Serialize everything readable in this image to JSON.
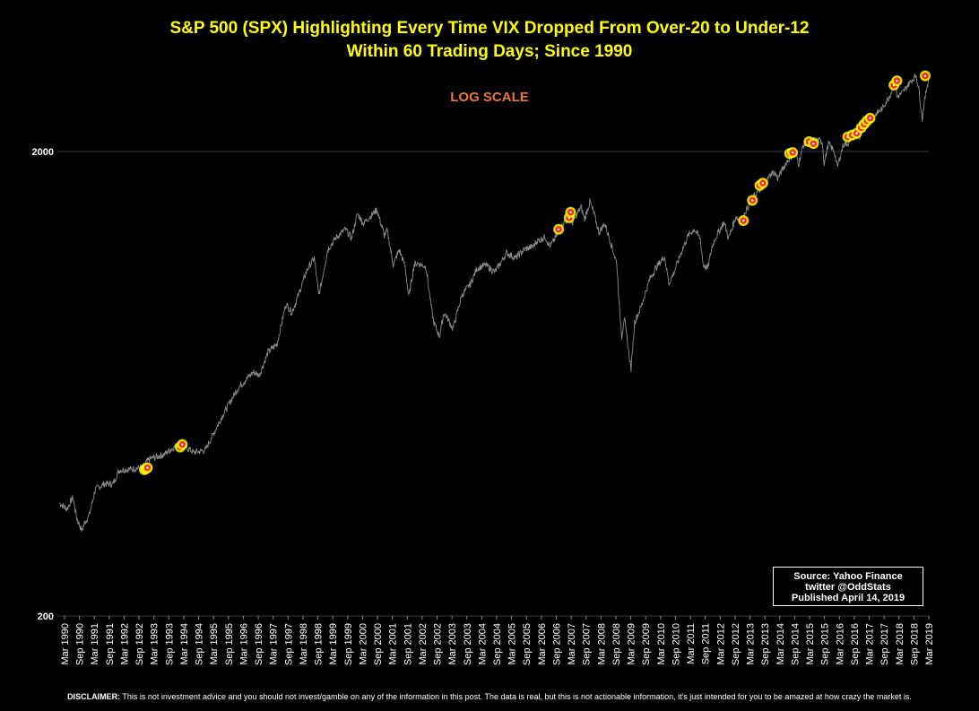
{
  "chart_data": {
    "type": "line",
    "title": "S&P 500 (SPX) Highlighting Every Time VIX Dropped From Over-20 to Under-12",
    "title_line2": "Within 60 Trading Days; Since 1990",
    "subtitle": "LOG SCALE",
    "y_scale": "log",
    "ylim": [
      200,
      3100
    ],
    "y_ticks": [
      {
        "value": 200,
        "label": "200"
      },
      {
        "value": 2000,
        "label": "2000"
      }
    ],
    "x_range": [
      1990.17,
      2019.17
    ],
    "x_tick_labels": [
      "Mar 1990",
      "Sep 1990",
      "Mar 1991",
      "Sep 1991",
      "Mar 1992",
      "Sep 1992",
      "Mar 1993",
      "Sep 1993",
      "Mar 1994",
      "Sep 1994",
      "Mar 1995",
      "Sep 1995",
      "Mar 1996",
      "Sep 1996",
      "Mar 1997",
      "Sep 1997",
      "Mar 1998",
      "Sep 1998",
      "Mar 1999",
      "Sep 1999",
      "Mar 2000",
      "Sep 2000",
      "Mar 2001",
      "Sep 2001",
      "Mar 2002",
      "Sep 2002",
      "Mar 2003",
      "Sep 2003",
      "Mar 2004",
      "Sep 2004",
      "Mar 2005",
      "Sep 2005",
      "Mar 2006",
      "Sep 2006",
      "Mar 2007",
      "Sep 2007",
      "Mar 2008",
      "Sep 2008",
      "Mar 2009",
      "Sep 2009",
      "Mar 2010",
      "Sep 2010",
      "Mar 2011",
      "Sep 2011",
      "Mar 2012",
      "Sep 2012",
      "Mar 2013",
      "Sep 2013",
      "Mar 2014",
      "Sep 2014",
      "Mar 2015",
      "Sep 2015",
      "Mar 2016",
      "Sep 2016",
      "Mar 2017",
      "Sep 2017",
      "Mar 2018",
      "Sep 2018",
      "Mar 2019"
    ],
    "grid": "horizontal at labeled ticks",
    "series": [
      {
        "color": "#8c8c8c",
        "points": [
          [
            1990.0,
            350
          ],
          [
            1990.25,
            340
          ],
          [
            1990.45,
            360
          ],
          [
            1990.58,
            325
          ],
          [
            1990.75,
            305
          ],
          [
            1990.85,
            318
          ],
          [
            1991.0,
            330
          ],
          [
            1991.2,
            375
          ],
          [
            1991.5,
            385
          ],
          [
            1991.8,
            385
          ],
          [
            1992.0,
            412
          ],
          [
            1992.5,
            415
          ],
          [
            1992.8,
            418
          ],
          [
            1993.0,
            435
          ],
          [
            1993.5,
            445
          ],
          [
            1993.9,
            465
          ],
          [
            1994.1,
            470
          ],
          [
            1994.5,
            450
          ],
          [
            1994.9,
            455
          ],
          [
            1995.0,
            470
          ],
          [
            1995.5,
            545
          ],
          [
            1996.0,
            620
          ],
          [
            1996.5,
            670
          ],
          [
            1996.7,
            660
          ],
          [
            1997.0,
            740
          ],
          [
            1997.3,
            770
          ],
          [
            1997.6,
            940
          ],
          [
            1997.8,
            900
          ],
          [
            1998.0,
            975
          ],
          [
            1998.3,
            1110
          ],
          [
            1998.55,
            1180
          ],
          [
            1998.7,
            980
          ],
          [
            1998.8,
            1050
          ],
          [
            1999.0,
            1230
          ],
          [
            1999.3,
            1310
          ],
          [
            1999.6,
            1360
          ],
          [
            1999.8,
            1300
          ],
          [
            2000.0,
            1470
          ],
          [
            2000.2,
            1400
          ],
          [
            2000.65,
            1500
          ],
          [
            2000.9,
            1320
          ],
          [
            2001.0,
            1350
          ],
          [
            2001.2,
            1140
          ],
          [
            2001.4,
            1230
          ],
          [
            2001.6,
            1130
          ],
          [
            2001.72,
            970
          ],
          [
            2001.9,
            1140
          ],
          [
            2002.0,
            1150
          ],
          [
            2002.3,
            1130
          ],
          [
            2002.45,
            950
          ],
          [
            2002.55,
            860
          ],
          [
            2002.75,
            800
          ],
          [
            2002.9,
            900
          ],
          [
            2003.0,
            880
          ],
          [
            2003.2,
            830
          ],
          [
            2003.5,
            980
          ],
          [
            2003.8,
            1040
          ],
          [
            2004.0,
            1120
          ],
          [
            2004.3,
            1140
          ],
          [
            2004.6,
            1100
          ],
          [
            2004.8,
            1150
          ],
          [
            2005.0,
            1210
          ],
          [
            2005.3,
            1180
          ],
          [
            2005.6,
            1230
          ],
          [
            2005.9,
            1250
          ],
          [
            2006.0,
            1280
          ],
          [
            2006.3,
            1310
          ],
          [
            2006.45,
            1250
          ],
          [
            2006.6,
            1290
          ],
          [
            2006.9,
            1400
          ],
          [
            2007.1,
            1440
          ],
          [
            2007.2,
            1400
          ],
          [
            2007.5,
            1520
          ],
          [
            2007.62,
            1430
          ],
          [
            2007.8,
            1560
          ],
          [
            2007.95,
            1460
          ],
          [
            2008.1,
            1340
          ],
          [
            2008.3,
            1400
          ],
          [
            2008.5,
            1270
          ],
          [
            2008.7,
            1150
          ],
          [
            2008.8,
            900
          ],
          [
            2008.87,
            800
          ],
          [
            2008.95,
            880
          ],
          [
            2009.1,
            740
          ],
          [
            2009.18,
            680
          ],
          [
            2009.3,
            860
          ],
          [
            2009.5,
            920
          ],
          [
            2009.8,
            1060
          ],
          [
            2010.0,
            1120
          ],
          [
            2010.3,
            1190
          ],
          [
            2010.45,
            1040
          ],
          [
            2010.6,
            1090
          ],
          [
            2010.9,
            1230
          ],
          [
            2011.1,
            1320
          ],
          [
            2011.3,
            1360
          ],
          [
            2011.5,
            1300
          ],
          [
            2011.6,
            1140
          ],
          [
            2011.75,
            1120
          ],
          [
            2011.9,
            1250
          ],
          [
            2012.0,
            1300
          ],
          [
            2012.3,
            1410
          ],
          [
            2012.45,
            1300
          ],
          [
            2012.7,
            1450
          ],
          [
            2012.9,
            1400
          ],
          [
            2013.0,
            1480
          ],
          [
            2013.3,
            1600
          ],
          [
            2013.6,
            1680
          ],
          [
            2013.9,
            1800
          ],
          [
            2014.0,
            1800
          ],
          [
            2014.1,
            1750
          ],
          [
            2014.4,
            1900
          ],
          [
            2014.7,
            2000
          ],
          [
            2014.8,
            1880
          ],
          [
            2014.95,
            2060
          ],
          [
            2015.2,
            2110
          ],
          [
            2015.4,
            2120
          ],
          [
            2015.6,
            2100
          ],
          [
            2015.66,
            1880
          ],
          [
            2015.8,
            2080
          ],
          [
            2016.0,
            2000
          ],
          [
            2016.1,
            1850
          ],
          [
            2016.3,
            2070
          ],
          [
            2016.5,
            2090
          ],
          [
            2016.6,
            2180
          ],
          [
            2016.85,
            2130
          ],
          [
            2017.0,
            2270
          ],
          [
            2017.3,
            2380
          ],
          [
            2017.6,
            2470
          ],
          [
            2017.9,
            2670
          ],
          [
            2018.05,
            2870
          ],
          [
            2018.1,
            2620
          ],
          [
            2018.3,
            2680
          ],
          [
            2018.5,
            2800
          ],
          [
            2018.75,
            2920
          ],
          [
            2018.85,
            2680
          ],
          [
            2018.95,
            2350
          ],
          [
            2019.0,
            2500
          ],
          [
            2019.1,
            2750
          ],
          [
            2019.17,
            2880
          ]
        ]
      }
    ],
    "highlight_points": [
      [
        1992.85,
        413
      ],
      [
        1992.9,
        415
      ],
      [
        1992.95,
        417
      ],
      [
        1994.05,
        462
      ],
      [
        1994.12,
        468
      ],
      [
        2006.75,
        1360
      ],
      [
        2007.1,
        1440
      ],
      [
        2007.15,
        1480
      ],
      [
        2012.95,
        1420
      ],
      [
        2013.25,
        1570
      ],
      [
        2013.5,
        1690
      ],
      [
        2013.6,
        1710
      ],
      [
        2014.5,
        1980
      ],
      [
        2014.6,
        1990
      ],
      [
        2015.15,
        2100
      ],
      [
        2015.3,
        2080
      ],
      [
        2016.45,
        2150
      ],
      [
        2016.6,
        2170
      ],
      [
        2016.75,
        2190
      ],
      [
        2016.9,
        2250
      ],
      [
        2017.0,
        2290
      ],
      [
        2017.1,
        2330
      ],
      [
        2017.2,
        2360
      ],
      [
        2018.0,
        2780
      ],
      [
        2018.1,
        2840
      ],
      [
        2019.05,
        2910
      ]
    ],
    "highlight_color": "#ff2020",
    "highlight_glow": "#ffff00"
  },
  "source_box": {
    "line1": "Source: Yahoo Finance",
    "line2": "twitter @OddStats",
    "line3": "Published April 14, 2019"
  },
  "disclaimer": {
    "label": "DISCLAIMER:",
    "text": "This is not investment advice and you should not invest/gamble on any of the information in this post.   The data is real, but this is not actionable information, it's just intended for you to be amazed at how crazy the market is."
  },
  "colors": {
    "background": "#000000",
    "title": "#ffff00",
    "subtitle": "#e8793a",
    "line": "#8c8c8c",
    "grid": "#3a3a3a"
  }
}
